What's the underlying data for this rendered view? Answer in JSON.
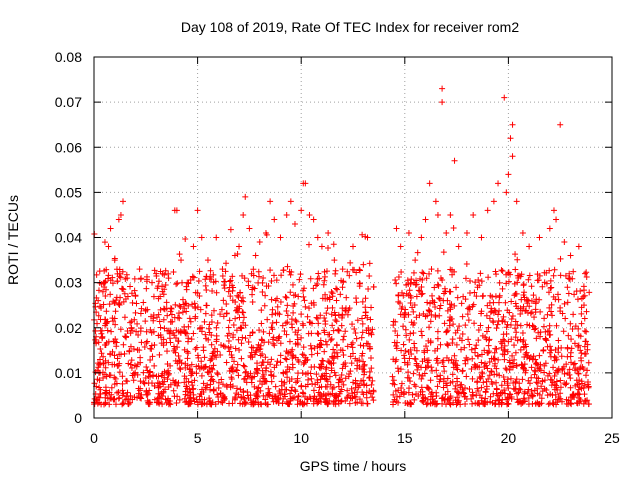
{
  "chart_data": {
    "type": "scatter",
    "title": "Day 108 of 2019, Rate Of TEC Index for receiver rom2",
    "xlabel": "GPS time / hours",
    "ylabel": "ROTI / TECUs",
    "xlim": [
      0,
      24
    ],
    "ylim": [
      0,
      0.08
    ],
    "xticks": [
      0,
      5,
      10,
      15,
      20,
      25
    ],
    "xtick_labels": [
      "0",
      "5",
      "10",
      "15",
      "20",
      "25"
    ],
    "yticks": [
      0,
      0.01,
      0.02,
      0.03,
      0.04,
      0.05,
      0.06,
      0.07,
      0.08
    ],
    "ytick_labels": [
      "0",
      "0.01",
      "0.02",
      "0.03",
      "0.04",
      "0.05",
      "0.06",
      "0.07",
      "0.08"
    ],
    "grid": true,
    "marker": "+",
    "marker_color": "#ff0000",
    "data_gap_hours": [
      13.5,
      14.4
    ],
    "series": [
      {
        "name": "ROTI",
        "color": "#ff0000",
        "points": [
          [
            0.1,
            0.018
          ],
          [
            0.2,
            0.026
          ],
          [
            0.3,
            0.012
          ],
          [
            0.5,
            0.03
          ],
          [
            0.6,
            0.021
          ],
          [
            0.7,
            0.038
          ],
          [
            0.8,
            0.042
          ],
          [
            1.0,
            0.035
          ],
          [
            1.2,
            0.044
          ],
          [
            1.3,
            0.045
          ],
          [
            1.4,
            0.048
          ],
          [
            1.6,
            0.031
          ],
          [
            1.8,
            0.02
          ],
          [
            2.0,
            0.027
          ],
          [
            2.2,
            0.033
          ],
          [
            2.5,
            0.024
          ],
          [
            2.8,
            0.03
          ],
          [
            3.0,
            0.032
          ],
          [
            3.3,
            0.028
          ],
          [
            3.6,
            0.031
          ],
          [
            3.9,
            0.046
          ],
          [
            4.0,
            0.046
          ],
          [
            4.2,
            0.035
          ],
          [
            4.5,
            0.03
          ],
          [
            4.8,
            0.038
          ],
          [
            5.0,
            0.046
          ],
          [
            5.2,
            0.04
          ],
          [
            5.5,
            0.035
          ],
          [
            5.9,
            0.04
          ],
          [
            6.2,
            0.033
          ],
          [
            6.5,
            0.028
          ],
          [
            6.8,
            0.036
          ],
          [
            7.0,
            0.038
          ],
          [
            7.2,
            0.045
          ],
          [
            7.3,
            0.049
          ],
          [
            7.5,
            0.042
          ],
          [
            7.8,
            0.036
          ],
          [
            8.0,
            0.039
          ],
          [
            8.3,
            0.041
          ],
          [
            8.5,
            0.048
          ],
          [
            8.7,
            0.044
          ],
          [
            9.0,
            0.04
          ],
          [
            9.3,
            0.045
          ],
          [
            9.5,
            0.048
          ],
          [
            9.7,
            0.043
          ],
          [
            10.0,
            0.046
          ],
          [
            10.1,
            0.052
          ],
          [
            10.2,
            0.052
          ],
          [
            10.4,
            0.045
          ],
          [
            10.6,
            0.044
          ],
          [
            10.8,
            0.04
          ],
          [
            11.0,
            0.038
          ],
          [
            11.3,
            0.041
          ],
          [
            11.6,
            0.035
          ],
          [
            12.0,
            0.033
          ],
          [
            12.5,
            0.038
          ],
          [
            13.0,
            0.034
          ],
          [
            13.2,
            0.04
          ],
          [
            14.6,
            0.042
          ],
          [
            14.8,
            0.038
          ],
          [
            15.2,
            0.041
          ],
          [
            15.5,
            0.035
          ],
          [
            15.8,
            0.04
          ],
          [
            16.0,
            0.044
          ],
          [
            16.2,
            0.052
          ],
          [
            16.5,
            0.048
          ],
          [
            16.6,
            0.045
          ],
          [
            16.8,
            0.073
          ],
          [
            16.8,
            0.07
          ],
          [
            17.0,
            0.041
          ],
          [
            17.2,
            0.045
          ],
          [
            17.4,
            0.057
          ],
          [
            17.6,
            0.038
          ],
          [
            18.0,
            0.041
          ],
          [
            18.3,
            0.045
          ],
          [
            18.7,
            0.04
          ],
          [
            19.0,
            0.046
          ],
          [
            19.3,
            0.048
          ],
          [
            19.5,
            0.052
          ],
          [
            19.8,
            0.071
          ],
          [
            19.9,
            0.05
          ],
          [
            20.0,
            0.054
          ],
          [
            20.1,
            0.062
          ],
          [
            20.2,
            0.065
          ],
          [
            20.2,
            0.058
          ],
          [
            20.4,
            0.048
          ],
          [
            20.7,
            0.041
          ],
          [
            21.0,
            0.038
          ],
          [
            21.5,
            0.04
          ],
          [
            22.0,
            0.042
          ],
          [
            22.2,
            0.046
          ],
          [
            22.3,
            0.044
          ],
          [
            22.5,
            0.065
          ],
          [
            22.7,
            0.039
          ],
          [
            23.0,
            0.036
          ],
          [
            23.4,
            0.038
          ],
          [
            23.7,
            0.032
          ]
        ]
      }
    ]
  }
}
